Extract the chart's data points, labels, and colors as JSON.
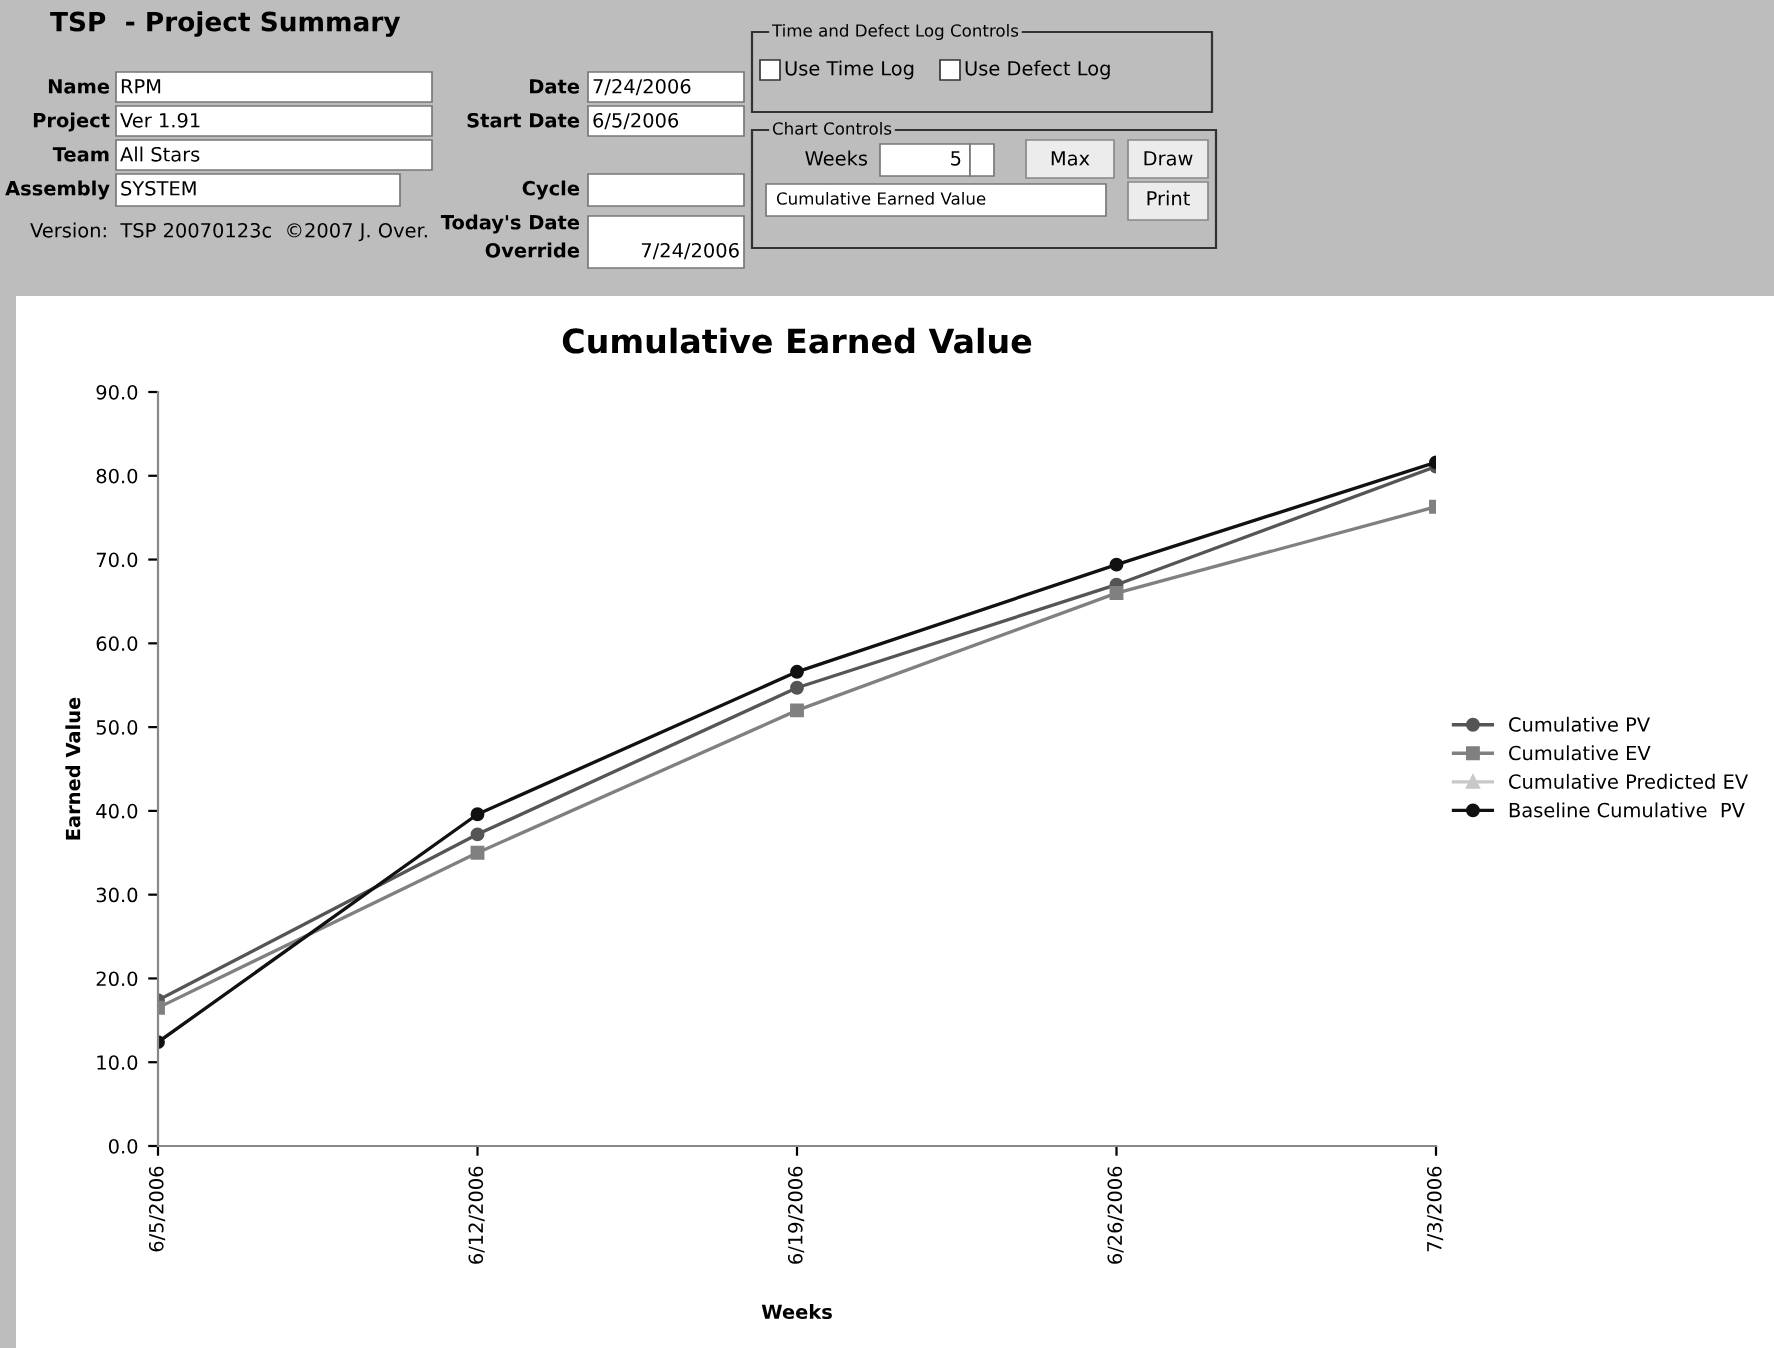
{
  "chart_data": {
    "type": "line",
    "title": "Cumulative Earned Value",
    "xlabel": "Weeks",
    "ylabel": "Earned Value",
    "categories": [
      "6/5/2006",
      "6/12/2006",
      "6/19/2006",
      "6/26/2006",
      "7/3/2006"
    ],
    "series": [
      {
        "name": "Cumulative PV",
        "color": "#555555",
        "marker": "circle",
        "values": [
          17.4,
          37.2,
          54.7,
          67.0,
          81.1
        ]
      },
      {
        "name": "Cumulative EV",
        "color": "#808080",
        "marker": "square",
        "values": [
          16.5,
          35.0,
          52.0,
          66.0,
          76.3
        ]
      },
      {
        "name": "Cumulative Predicted EV",
        "color": "#c8c8c8",
        "marker": "triangle",
        "values": [
          null,
          null,
          null,
          null,
          null
        ]
      },
      {
        "name": "Baseline Cumulative  PV",
        "color": "#111111",
        "marker": "circle",
        "values": [
          12.4,
          39.6,
          56.6,
          69.4,
          81.6
        ]
      }
    ],
    "ylim": [
      0,
      90
    ],
    "yticks": [
      {
        "value": 0,
        "label": "0.0"
      },
      {
        "value": 10,
        "label": "10.0"
      },
      {
        "value": 20,
        "label": "20.0"
      },
      {
        "value": 30,
        "label": "30.0"
      },
      {
        "value": 40,
        "label": "40.0"
      },
      {
        "value": 50,
        "label": "50.0"
      },
      {
        "value": 60,
        "label": "60.0"
      },
      {
        "value": 70,
        "label": "70.0"
      },
      {
        "value": 80,
        "label": "80.0"
      },
      {
        "value": 90,
        "label": "90.0"
      }
    ],
    "grid": false,
    "legend": "right",
    "line_style": "solid",
    "annotations": [
      "TSP  - Project Summary",
      "Name",
      "RPM",
      "Project",
      "Ver 1.91",
      "Team",
      "All Stars",
      "Assembly",
      "SYSTEM",
      "Version:  TSP 20070123c  ©2007 J. Over.",
      "Date",
      "7/24/2006",
      "Start Date",
      "6/5/2006",
      "Cycle",
      "Today's Date",
      "Override",
      "7/24/2006",
      "Time and Defect Log Controls",
      "Use Time Log",
      "Use Defect Log",
      "Chart Controls",
      "Weeks",
      "5",
      "Max",
      "Draw",
      "Cumulative Earned Value",
      "Print"
    ]
  }
}
